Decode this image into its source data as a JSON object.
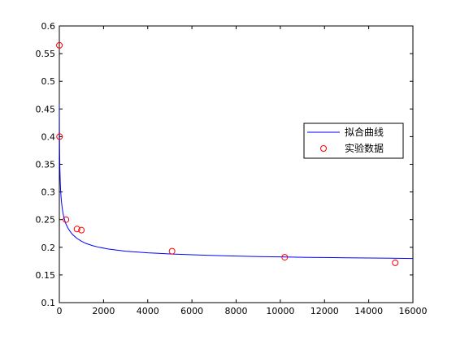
{
  "chart_data": {
    "type": "scatter",
    "title": "",
    "xlabel": "",
    "ylabel": "",
    "xlim": [
      0,
      16000
    ],
    "ylim": [
      0.1,
      0.6
    ],
    "x_ticks": [
      0,
      2000,
      4000,
      6000,
      8000,
      10000,
      12000,
      14000,
      16000
    ],
    "x_tick_labels": [
      "0",
      "2000",
      "4000",
      "6000",
      "8000",
      "10000",
      "12000",
      "14000",
      "16000"
    ],
    "y_ticks": [
      0.1,
      0.15,
      0.2,
      0.25,
      0.3,
      0.35,
      0.4,
      0.45,
      0.5,
      0.55,
      0.6
    ],
    "y_tick_labels": [
      "0.1",
      "0.15",
      "0.2",
      "0.25",
      "0.3",
      "0.35",
      "0.4",
      "0.45",
      "0.5",
      "0.55",
      "0.6"
    ],
    "grid": false,
    "legend_position": "right-middle",
    "series": [
      {
        "name": "拟合曲线",
        "kind": "line",
        "color": "#0000ff",
        "x": [
          1,
          3,
          6,
          10,
          15,
          20,
          30,
          40,
          50,
          60,
          80,
          100,
          130,
          160,
          200,
          250,
          300,
          400,
          500,
          600,
          800,
          1000,
          1200,
          1500,
          1800,
          2200,
          2600,
          3000,
          3500,
          4000,
          4500,
          5000,
          5500,
          6000,
          7000,
          8000,
          9000,
          10000,
          11000,
          12000,
          13000,
          14000,
          15000,
          16000
        ],
        "y": [
          0.46,
          0.435,
          0.41,
          0.39,
          0.37,
          0.355,
          0.335,
          0.32,
          0.31,
          0.302,
          0.29,
          0.281,
          0.271,
          0.263,
          0.255,
          0.248,
          0.242,
          0.234,
          0.228,
          0.223,
          0.216,
          0.211,
          0.207,
          0.203,
          0.2,
          0.197,
          0.195,
          0.193,
          0.1915,
          0.19,
          0.189,
          0.188,
          0.1872,
          0.1865,
          0.1852,
          0.1842,
          0.1833,
          0.1826,
          0.182,
          0.1815,
          0.181,
          0.1806,
          0.1802,
          0.1798
        ]
      },
      {
        "name": "实验数据",
        "kind": "scatter",
        "color": "#ff0000",
        "marker": "circle-open",
        "x": [
          3,
          10,
          300,
          800,
          1000,
          5100,
          10200,
          15200
        ],
        "y": [
          0.565,
          0.4,
          0.25,
          0.233,
          0.231,
          0.193,
          0.182,
          0.172
        ]
      }
    ]
  }
}
